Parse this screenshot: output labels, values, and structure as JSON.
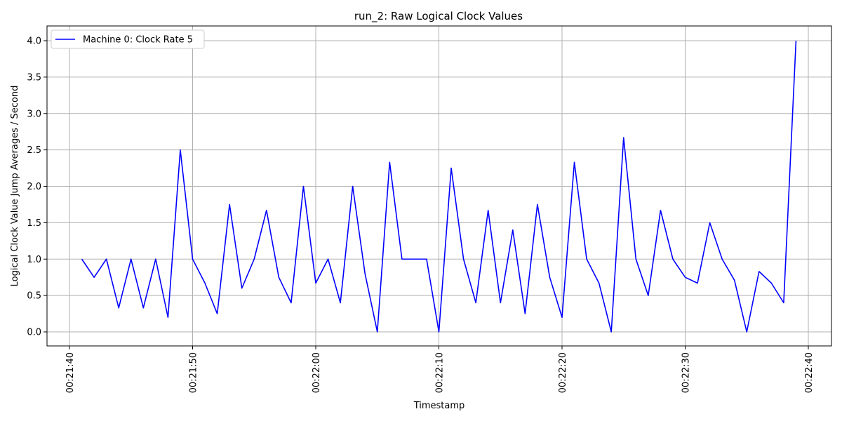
{
  "chart_data": {
    "type": "line",
    "title": "run_2: Raw Logical Clock Values",
    "xlabel": "Timestamp",
    "ylabel": "Logical Clock Value Jump Averages / Second",
    "x_ticks": [
      "00:21:40",
      "00:21:50",
      "00:22:00",
      "00:22:10",
      "00:22:20",
      "00:22:30",
      "00:22:40"
    ],
    "y_ticks": [
      "0.0",
      "0.5",
      "1.0",
      "1.5",
      "2.0",
      "2.5",
      "3.0",
      "3.5",
      "4.0"
    ],
    "xlim": [
      "00:21:40",
      "00:22:40"
    ],
    "ylim": [
      0,
      4
    ],
    "grid": true,
    "legend_position": "top-left",
    "series": [
      {
        "name": "Machine 0: Clock Rate 5",
        "color": "#0000ff",
        "x": [
          "00:21:41",
          "00:21:42",
          "00:21:43",
          "00:21:44",
          "00:21:45",
          "00:21:46",
          "00:21:47",
          "00:21:48",
          "00:21:49",
          "00:21:50",
          "00:21:51",
          "00:21:52",
          "00:21:53",
          "00:21:54",
          "00:21:55",
          "00:21:56",
          "00:21:57",
          "00:21:58",
          "00:21:59",
          "00:22:00",
          "00:22:01",
          "00:22:02",
          "00:22:03",
          "00:22:04",
          "00:22:05",
          "00:22:06",
          "00:22:07",
          "00:22:08",
          "00:22:09",
          "00:22:10",
          "00:22:11",
          "00:22:12",
          "00:22:13",
          "00:22:14",
          "00:22:15",
          "00:22:16",
          "00:22:17",
          "00:22:18",
          "00:22:19",
          "00:22:20",
          "00:22:21",
          "00:22:22",
          "00:22:23",
          "00:22:24",
          "00:22:25",
          "00:22:26",
          "00:22:27",
          "00:22:28",
          "00:22:29",
          "00:22:30",
          "00:22:31",
          "00:22:32",
          "00:22:33",
          "00:22:34",
          "00:22:35",
          "00:22:36",
          "00:22:37",
          "00:22:38",
          "00:22:39"
        ],
        "y": [
          1.0,
          0.75,
          1.0,
          0.33,
          1.0,
          0.33,
          1.0,
          0.2,
          2.5,
          1.0,
          0.67,
          0.25,
          1.75,
          0.6,
          1.0,
          1.67,
          0.75,
          0.4,
          2.0,
          0.67,
          1.0,
          0.4,
          2.0,
          0.8,
          0.0,
          2.33,
          1.0,
          1.0,
          1.0,
          0.0,
          2.25,
          1.0,
          0.4,
          1.67,
          0.4,
          1.4,
          0.25,
          1.75,
          0.75,
          0.2,
          2.33,
          1.0,
          0.67,
          0.0,
          2.67,
          1.0,
          0.5,
          1.67,
          1.0,
          0.75,
          0.67,
          1.5,
          1.0,
          0.71,
          0.0,
          0.83,
          0.67,
          0.4,
          4.0
        ]
      }
    ]
  }
}
